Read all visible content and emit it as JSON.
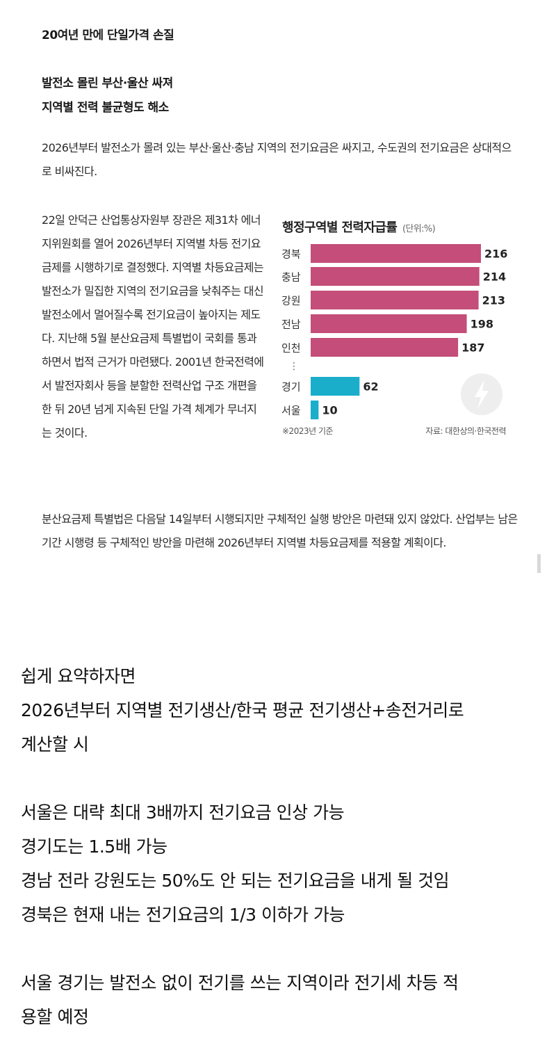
{
  "article": {
    "subhead1": "20여년 만에 단일가격 손질",
    "subhead2a": "발전소 몰린 부산·울산 싸져",
    "subhead2b": "지역별 전력 불균형도 해소",
    "para1": "2026년부터 발전소가 몰려 있는 부산·울산·충남 지역의 전기요금은 싸지고, 수도권의 전기요금은 상대적으로 비싸진다.",
    "para2": "22일 안덕근 산업통상자원부 장관은 제31차 에너지위원회를 열어 2026년부터 지역별 차등 전기요금제를 시행하기로 결정했다. 지역별 차등요금제는 발전소가 밀집한 지역의 전기요금을 낮춰주는 대신 발전소에서 멀어질수록 전기요금이 높아지는 제도다. 지난해 5월 분산요금제 특별법이 국회를 통과하면서 법적 근거가 마련됐다. 2001년 한국전력에서 발전자회사 등을 분할한 전력산업 구조 개편을 한 뒤 20년 넘게 지속된 단일 가격 체계가 무너지는 것이다.",
    "para3": "분산요금제 특별법은 다음달 14일부터 시행되지만 구체적인 실행 방안은 마련돼 있지 않았다. 산업부는 남은 기간 시행령 등 구체적인 방안을 마련해 2026년부터 지역별 차등요금제를 적용할 계획이다."
  },
  "chart_data": {
    "type": "bar",
    "orientation": "horizontal",
    "title": "행정구역별 전력자급률",
    "unit": "(단위:%)",
    "categories": [
      "경북",
      "충남",
      "강원",
      "전남",
      "인천",
      "경기",
      "서울"
    ],
    "values": [
      216,
      214,
      213,
      198,
      187,
      62,
      10
    ],
    "value_labels": [
      "216",
      "214",
      "213",
      "198",
      "187",
      "62",
      "10"
    ],
    "gap_marker": "⋮",
    "colors": [
      "#c44d79",
      "#c44d79",
      "#c44d79",
      "#c44d79",
      "#c44d79",
      "#1aaecb",
      "#1aaecb"
    ],
    "note": "※2023년 기준",
    "source": "자료: 대한상의·한국전력",
    "icon": "lightning-icon"
  },
  "summary": {
    "lines": [
      "쉽게 요약하자면",
      "2026년부터 지역별 전기생산/한국 평균 전기생산+송전거리로",
      "계산할 시",
      "",
      "서울은 대략 최대 3배까지 전기요금 인상 가능",
      "경기도는 1.5배 가능",
      "경남 전라 강원도는 50%도 안 되는 전기요금을 내게 될 것임",
      "경북은 현재 내는 전기요금의 1/3 이하가 가능",
      "",
      "서울 경기는 발전소 없이 전기를 쓰는 지역이라 전기세 차등 적",
      "용할 예정"
    ]
  }
}
